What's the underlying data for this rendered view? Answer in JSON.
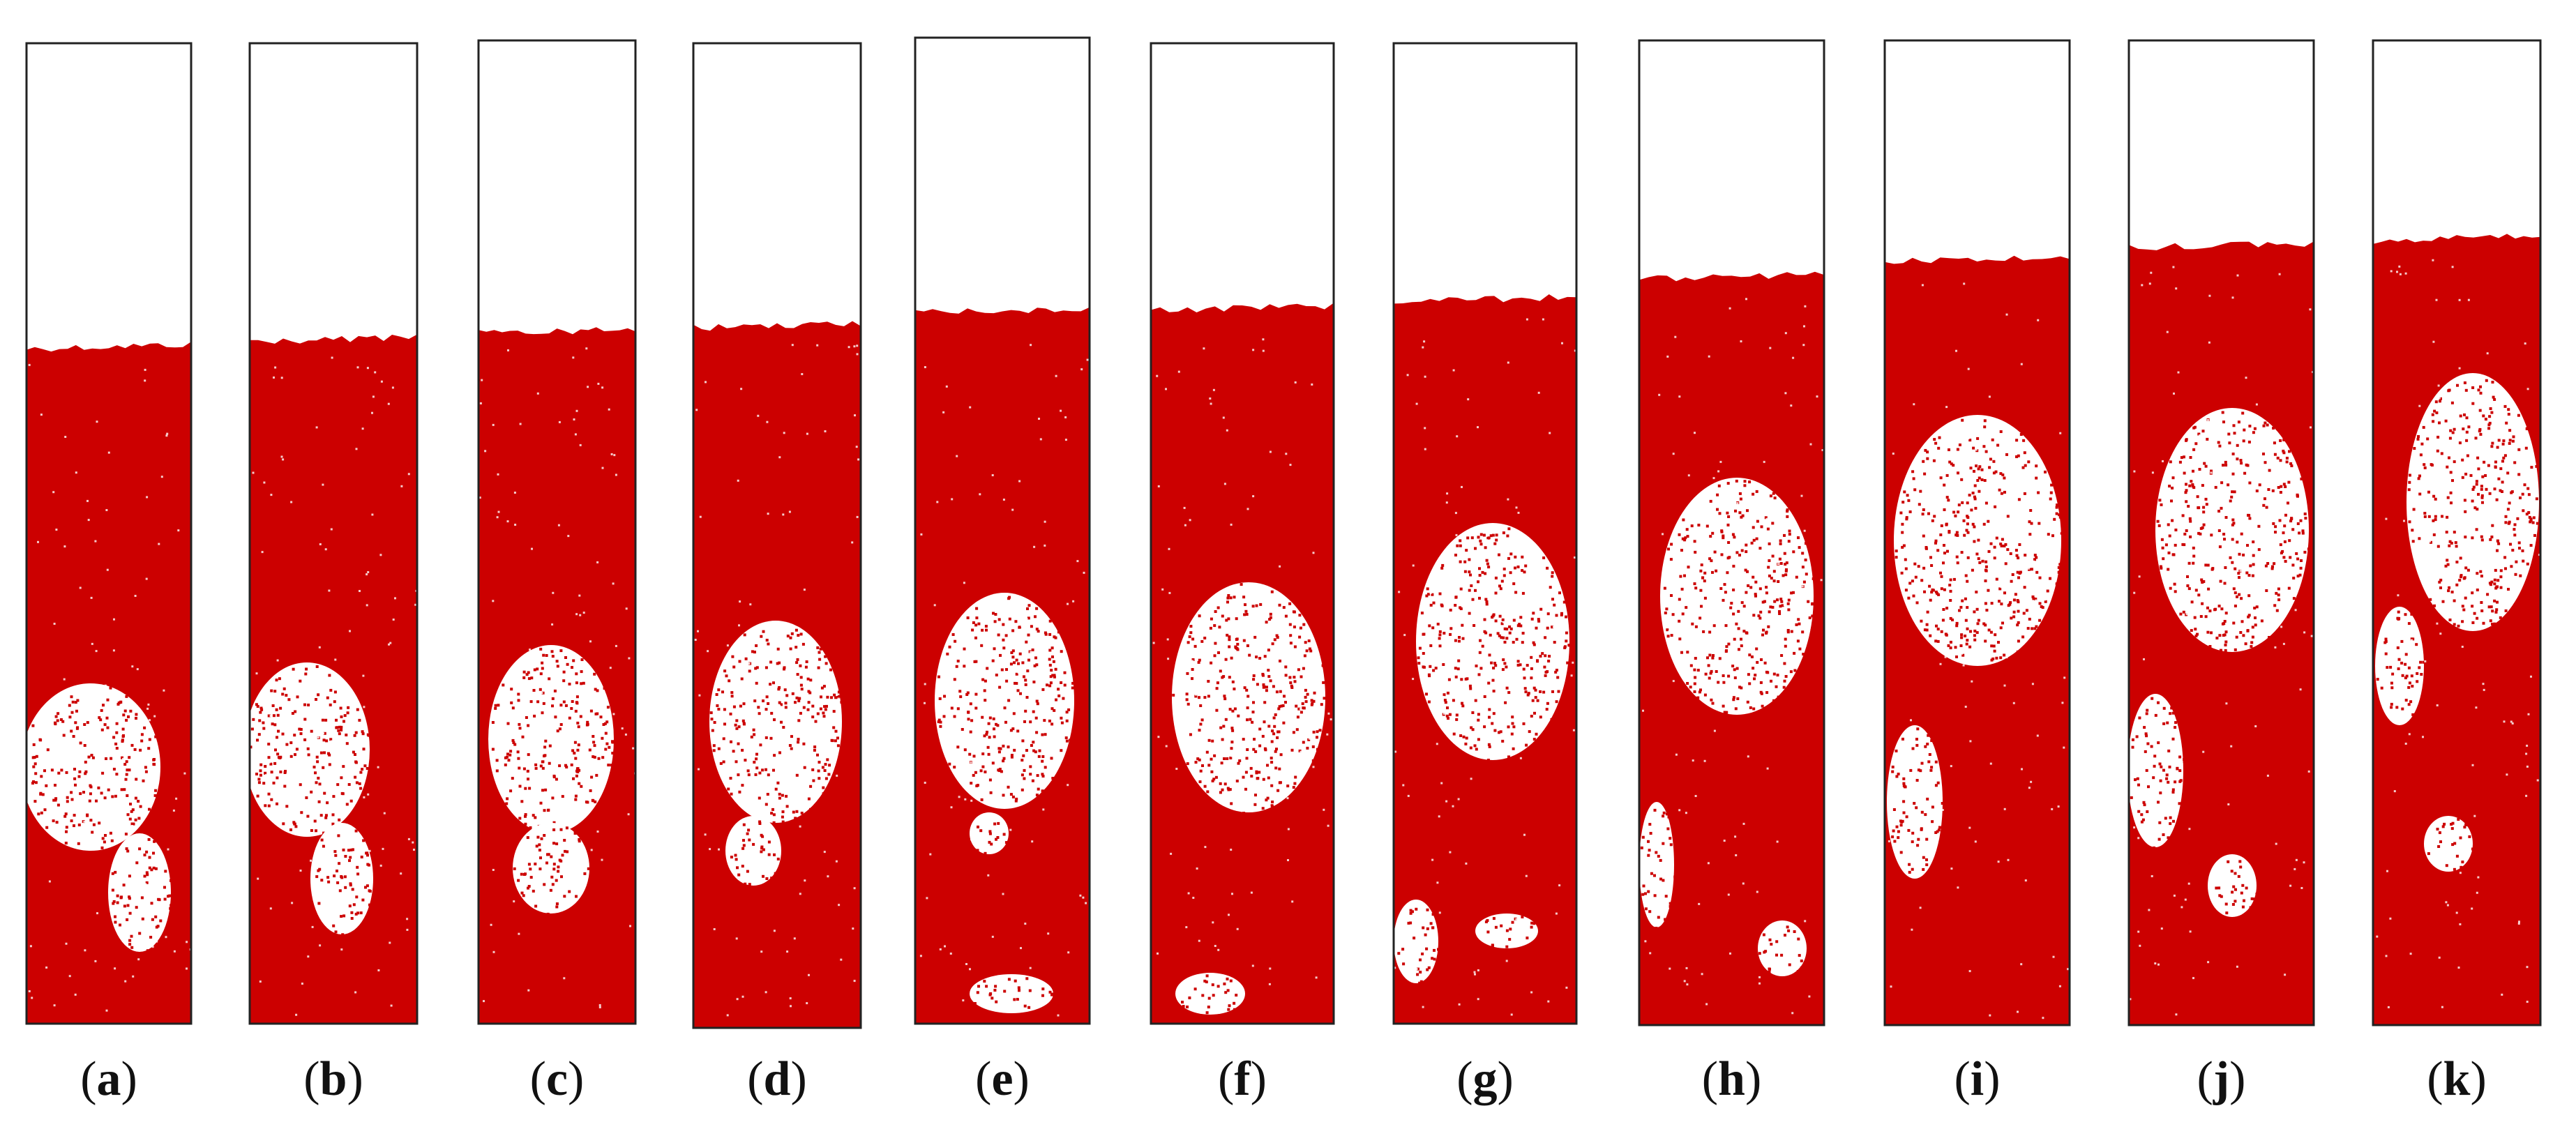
{
  "colors": {
    "particle": "#cc0000",
    "void": "#ffffff",
    "border": "#222222",
    "label": "#111111"
  },
  "panels": [
    {
      "id": "a",
      "label": "a"
    },
    {
      "id": "b",
      "label": "b"
    },
    {
      "id": "c",
      "label": "c"
    },
    {
      "id": "d",
      "label": "d"
    },
    {
      "id": "e",
      "label": "e"
    },
    {
      "id": "f",
      "label": "f"
    },
    {
      "id": "g",
      "label": "g"
    },
    {
      "id": "h",
      "label": "h"
    },
    {
      "id": "i",
      "label": "i"
    },
    {
      "id": "j",
      "label": "j"
    },
    {
      "id": "k",
      "label": "k"
    }
  ]
}
